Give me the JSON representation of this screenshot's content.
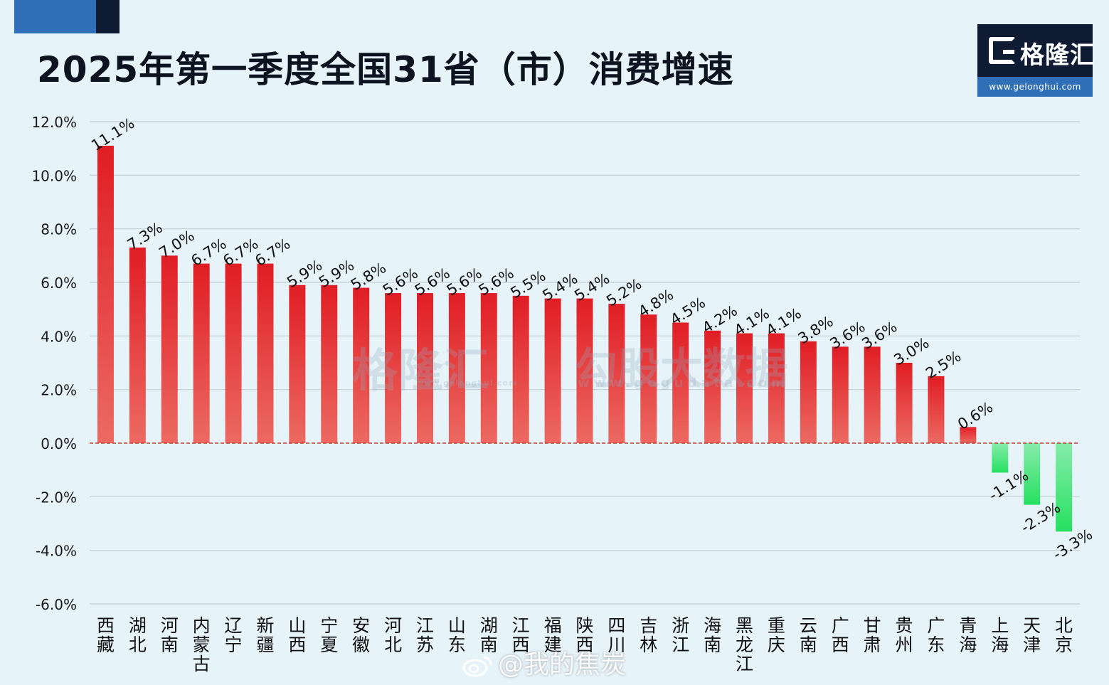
{
  "title": "2025年第一季度全国31省（市）消费增速",
  "logo": {
    "name": "格隆汇",
    "url": "www.gelonghui.com"
  },
  "watermarks": {
    "brand_1": "格隆汇",
    "brand_1_url": "www.gelonghui.com",
    "brand_2": "勾股大数据",
    "brand_2_url": "www.gogudata.com"
  },
  "weibo_handle": "@我的焦炭",
  "colors": {
    "positive": "#e01d25",
    "negative": "#2ee06a",
    "zero_line": "#c0392b",
    "grid": "#c3cfd8"
  },
  "chart_data": {
    "type": "bar",
    "title": "2025年第一季度全国31省（市）消费增速",
    "xlabel": "",
    "ylabel": "",
    "ylim": [
      -6.0,
      12.0
    ],
    "yticks": [
      "12.0%",
      "10.0%",
      "8.0%",
      "6.0%",
      "4.0%",
      "2.0%",
      "0.0%",
      "-2.0%",
      "-4.0%",
      "-6.0%"
    ],
    "grid": true,
    "categories": [
      "西藏",
      "湖北",
      "河南",
      "内蒙古",
      "辽宁",
      "新疆",
      "山西",
      "宁夏",
      "安徽",
      "河北",
      "江苏",
      "山东",
      "湖南",
      "江西",
      "福建",
      "陕西",
      "四川",
      "吉林",
      "浙江",
      "海南",
      "黑龙江",
      "重庆",
      "云南",
      "广西",
      "甘肃",
      "贵州",
      "广东",
      "青海",
      "上海",
      "天津",
      "北京"
    ],
    "values": [
      11.1,
      7.3,
      7.0,
      6.7,
      6.7,
      6.7,
      5.9,
      5.9,
      5.8,
      5.6,
      5.6,
      5.6,
      5.6,
      5.5,
      5.4,
      5.4,
      5.2,
      4.8,
      4.5,
      4.2,
      4.1,
      4.1,
      3.8,
      3.6,
      3.6,
      3.0,
      2.5,
      0.6,
      -1.1,
      -2.3,
      -3.3
    ],
    "labels": [
      "11.1%",
      "7.3%",
      "7.0%",
      "6.7%",
      "6.7%",
      "6.7%",
      "5.9%",
      "5.9%",
      "5.8%",
      "5.6%",
      "5.6%",
      "5.6%",
      "5.6%",
      "5.5%",
      "5.4%",
      "5.4%",
      "5.2%",
      "4.8%",
      "4.5%",
      "4.2%",
      "4.1%",
      "4.1%",
      "3.8%",
      "3.6%",
      "3.6%",
      "3.0%",
      "2.5%",
      "0.6%",
      "-1.1%",
      "-2.3%",
      "-3.3%"
    ]
  }
}
